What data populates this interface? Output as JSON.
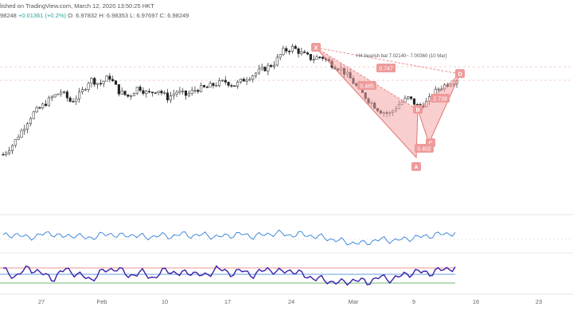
{
  "header": {
    "line1": "lished on TradingView.com, March 12, 2020 13:50:25 HKT",
    "line2_prefix": "98248",
    "change": "+0.01361 (+0.2%)",
    "open": "O: 6.97832",
    "high": "H: 6.98353",
    "low": "L: 6.97697",
    "close": "C: 6.98249"
  },
  "pattern": {
    "note": "H4 bearish bat 7.02140~ 7.00360 (10 Mar)",
    "points": [
      "X",
      "A",
      "B",
      "C",
      "D"
    ],
    "ratios": [
      "0.485",
      "0.747",
      "2.739",
      "0.402"
    ],
    "fill_color": "#f4a6a6",
    "line_color": "#e57373",
    "label_color": "#ef9a9a"
  },
  "chart_data": {
    "type": "candlestick",
    "x_axis_ticks": [
      "27",
      "Feb",
      "10",
      "17",
      "24",
      "Mar",
      "9",
      "16",
      "23"
    ],
    "price_series_shape": [
      0.1,
      0.18,
      0.3,
      0.42,
      0.48,
      0.55,
      0.6,
      0.52,
      0.58,
      0.7,
      0.66,
      0.72,
      0.6,
      0.56,
      0.64,
      0.58,
      0.62,
      0.55,
      0.6,
      0.57,
      0.62,
      0.63,
      0.66,
      0.68,
      0.65,
      0.7,
      0.74,
      0.78,
      0.82,
      0.92,
      0.95,
      0.9,
      0.86,
      0.88,
      0.82,
      0.78,
      0.7,
      0.6,
      0.52,
      0.45,
      0.42,
      0.5,
      0.55,
      0.48,
      0.52,
      0.62,
      0.66,
      0.7
    ],
    "rsi_upper_shape": [
      0.55,
      0.62,
      0.5,
      0.58,
      0.66,
      0.52,
      0.6,
      0.48,
      0.57,
      0.63,
      0.55,
      0.6,
      0.5,
      0.58,
      0.54,
      0.62,
      0.57,
      0.6,
      0.52,
      0.58,
      0.62,
      0.55,
      0.6,
      0.66,
      0.58,
      0.62,
      0.56,
      0.5,
      0.42,
      0.35,
      0.3,
      0.38,
      0.45,
      0.4,
      0.48,
      0.52,
      0.58,
      0.62,
      0.66
    ],
    "osc_lower_shape": [
      0.65,
      0.45,
      0.72,
      0.55,
      0.4,
      0.68,
      0.5,
      0.38,
      0.62,
      0.7,
      0.48,
      0.58,
      0.42,
      0.66,
      0.52,
      0.6,
      0.45,
      0.7,
      0.55,
      0.62,
      0.5,
      0.68,
      0.58,
      0.64,
      0.48,
      0.4,
      0.32,
      0.28,
      0.36,
      0.3,
      0.44,
      0.38,
      0.52,
      0.6,
      0.56,
      0.66,
      0.72
    ],
    "colors": {
      "candle": "#222222",
      "rsi_line": "#2f7fd6",
      "osc_line": "#3a1fa8",
      "osc_upper_band": "#e57373",
      "osc_lower_band": "#43a047",
      "osc_mid_band": "#2f7fd6"
    }
  }
}
